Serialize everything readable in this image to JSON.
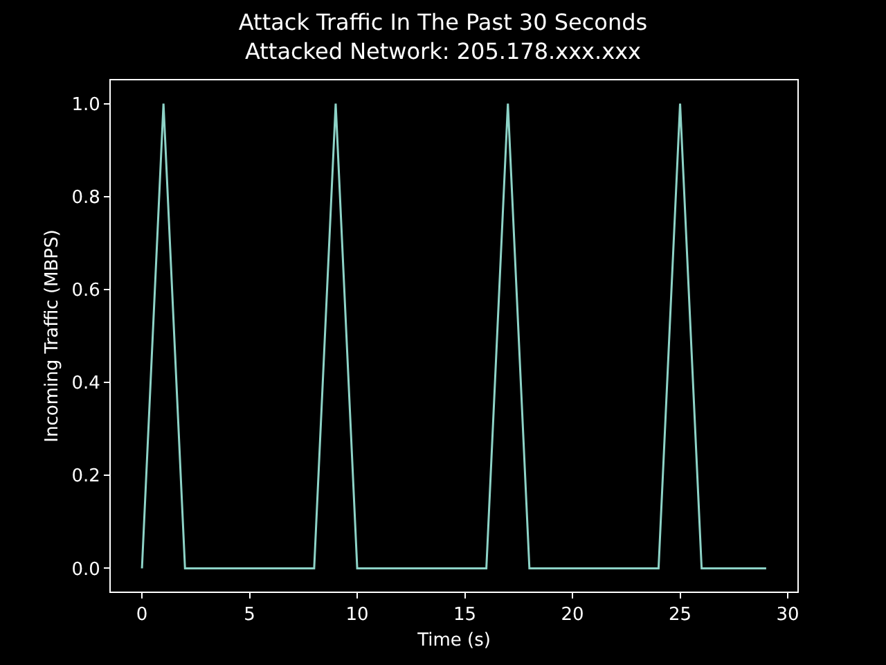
{
  "chart_data": {
    "type": "line",
    "title": "Attack Traffic In The Past 30 Seconds",
    "subtitle": "Attacked Network: 205.178.xxx.xxx",
    "xlabel": "Time (s)",
    "ylabel": "Incoming Traffic (MBPS)",
    "x": [
      0,
      1,
      2,
      3,
      4,
      5,
      6,
      7,
      8,
      9,
      10,
      11,
      12,
      13,
      14,
      15,
      16,
      17,
      18,
      19,
      20,
      21,
      22,
      23,
      24,
      25,
      26,
      27,
      28,
      29
    ],
    "series": [
      {
        "color": "#8dd3c7",
        "values": [
          0,
          1,
          0,
          0,
          0,
          0,
          0,
          0,
          0,
          1,
          0,
          0,
          0,
          0,
          0,
          0,
          0,
          1,
          0,
          0,
          0,
          0,
          0,
          0,
          0,
          1,
          0,
          0,
          0,
          0
        ]
      }
    ],
    "xlim": [
      -1.45,
      30.45
    ],
    "ylim": [
      -0.05,
      1.05
    ],
    "xticks": [
      0,
      5,
      10,
      15,
      20,
      25,
      30
    ],
    "yticks": [
      {
        "value": 0,
        "label": "0.0"
      },
      {
        "value": 0.2,
        "label": "0.2"
      },
      {
        "value": 0.4,
        "label": "0.4"
      },
      {
        "value": 0.6,
        "label": "0.6"
      },
      {
        "value": 0.8,
        "label": "0.8"
      },
      {
        "value": 1,
        "label": "1.0"
      }
    ],
    "grid": false,
    "marker": "none",
    "line_style": "solid"
  }
}
